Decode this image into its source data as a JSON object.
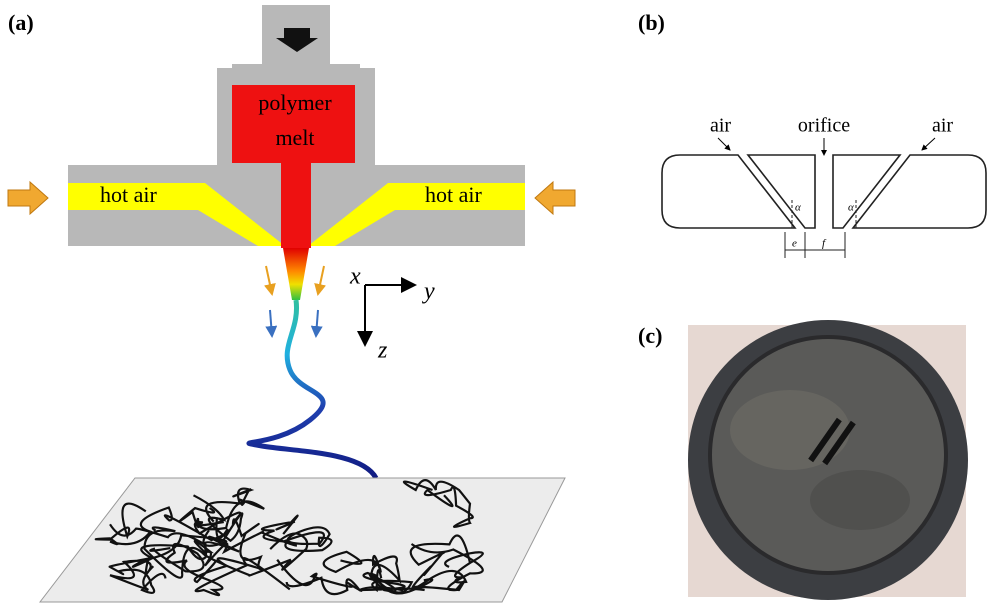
{
  "panels": [
    {
      "label": "(a)",
      "melt": [
        "polymer",
        "melt"
      ],
      "air": [
        "hot air",
        "hot air"
      ],
      "axes": [
        "x",
        "y",
        "z"
      ]
    },
    {
      "label": "(b)",
      "texts": [
        "air",
        "orifice",
        "air"
      ],
      "symbols": [
        "α",
        "α",
        "e",
        "f"
      ]
    },
    {
      "label": "(c)"
    }
  ]
}
